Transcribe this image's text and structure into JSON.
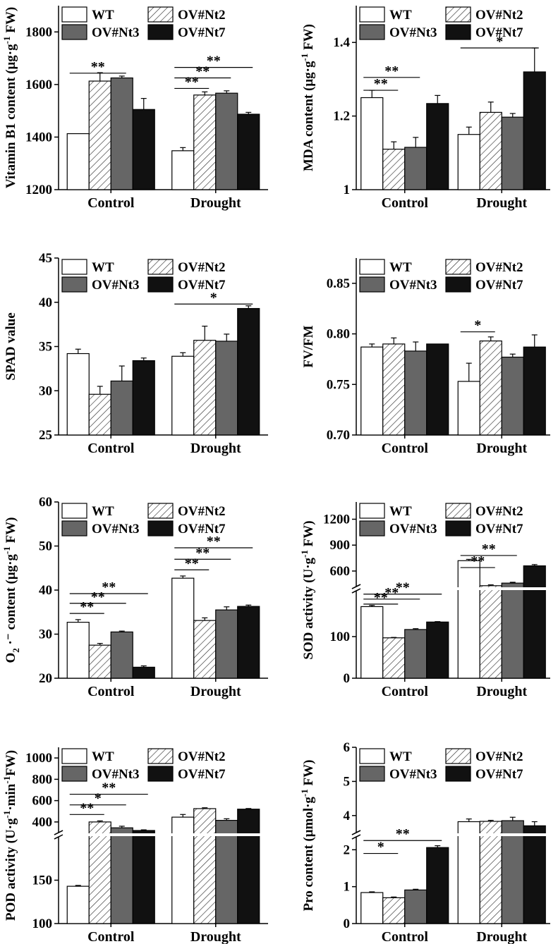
{
  "legend": {
    "wt": "WT",
    "ov2": "OV#Nt2",
    "ov3": "OV#Nt3",
    "ov7": "OV#Nt7"
  },
  "chart_data": [
    {
      "id": "vb1",
      "type": "bar",
      "ylabel": "Vitamin B1 content (μg·g−1 FW)",
      "ylabel_parts": [
        "Vitamin B1 content (μg·g",
        "-1",
        " FW)"
      ],
      "categories": [
        "Control",
        "Drought"
      ],
      "ylim": [
        1200,
        1900
      ],
      "yticks": [
        1200,
        1400,
        1600,
        1800
      ],
      "series": [
        {
          "name": "WT",
          "values": [
            1413,
            1348
          ],
          "errors": [
            0,
            12
          ]
        },
        {
          "name": "OV#Nt2",
          "values": [
            1613,
            1560
          ],
          "errors": [
            32,
            12
          ]
        },
        {
          "name": "OV#Nt3",
          "values": [
            1625,
            1567
          ],
          "errors": [
            7,
            9
          ]
        },
        {
          "name": "OV#Nt7",
          "values": [
            1505,
            1487
          ],
          "errors": [
            42,
            7
          ]
        }
      ],
      "significance": [
        {
          "category": 0,
          "from": 0,
          "to": 2,
          "label": "**",
          "level": 1643
        },
        {
          "category": 1,
          "from": 0,
          "to": 1,
          "label": "**",
          "level": 1585
        },
        {
          "category": 1,
          "from": 0,
          "to": 2,
          "label": "**",
          "level": 1625
        },
        {
          "category": 1,
          "from": 0,
          "to": 3,
          "label": "**",
          "level": 1665
        }
      ]
    },
    {
      "id": "mda",
      "type": "bar",
      "ylabel": "MDA content (μg·g−1 FW)",
      "ylabel_parts": [
        "MDA content (μg·g",
        "-1",
        " FW)"
      ],
      "categories": [
        "Control",
        "Drought"
      ],
      "ylim": [
        1.0,
        1.5
      ],
      "yticks": [
        1.0,
        1.2,
        1.4
      ],
      "series": [
        {
          "name": "WT",
          "values": [
            1.25,
            1.15
          ],
          "errors": [
            0.02,
            0.02
          ]
        },
        {
          "name": "OV#Nt2",
          "values": [
            1.11,
            1.21
          ],
          "errors": [
            0.02,
            0.028
          ]
        },
        {
          "name": "OV#Nt3",
          "values": [
            1.115,
            1.197
          ],
          "errors": [
            0.027,
            0.01
          ]
        },
        {
          "name": "OV#Nt7",
          "values": [
            1.234,
            1.32
          ],
          "errors": [
            0.022,
            0.065
          ]
        }
      ],
      "significance": [
        {
          "category": 0,
          "from": 0,
          "to": 1,
          "label": "**",
          "level": 1.27
        },
        {
          "category": 0,
          "from": 0,
          "to": 2,
          "label": "**",
          "level": 1.305
        },
        {
          "category": 1,
          "from": 0,
          "to": 3,
          "label": "*",
          "level": 1.385
        }
      ]
    },
    {
      "id": "spad",
      "type": "bar",
      "ylabel": "SPAD value",
      "ylabel_parts": [
        "SPAD value",
        "",
        ""
      ],
      "categories": [
        "Control",
        "Drought"
      ],
      "ylim": [
        25,
        45
      ],
      "yticks": [
        25,
        30,
        35,
        40,
        45
      ],
      "series": [
        {
          "name": "WT",
          "values": [
            34.2,
            33.9
          ],
          "errors": [
            0.5,
            0.4
          ]
        },
        {
          "name": "OV#Nt2",
          "values": [
            29.6,
            35.7
          ],
          "errors": [
            0.9,
            1.6
          ]
        },
        {
          "name": "OV#Nt3",
          "values": [
            31.1,
            35.6
          ],
          "errors": [
            1.7,
            0.8
          ]
        },
        {
          "name": "OV#Nt7",
          "values": [
            33.4,
            39.3
          ],
          "errors": [
            0.3,
            0.3
          ]
        }
      ],
      "significance": [
        {
          "category": 1,
          "from": 0,
          "to": 3,
          "label": "*",
          "level": 39.8
        }
      ]
    },
    {
      "id": "fvfm",
      "type": "bar",
      "ylabel": "FV/FM",
      "ylabel_parts": [
        "FV/FM",
        "",
        ""
      ],
      "categories": [
        "Control",
        "Drought"
      ],
      "ylim": [
        0.7,
        0.875
      ],
      "yticks": [
        0.7,
        0.75,
        0.8,
        0.85
      ],
      "tick_decimals": 2,
      "series": [
        {
          "name": "WT",
          "values": [
            0.787,
            0.753
          ],
          "errors": [
            0.003,
            0.018
          ]
        },
        {
          "name": "OV#Nt2",
          "values": [
            0.79,
            0.793
          ],
          "errors": [
            0.006,
            0.004
          ]
        },
        {
          "name": "OV#Nt3",
          "values": [
            0.783,
            0.777
          ],
          "errors": [
            0.009,
            0.003
          ]
        },
        {
          "name": "OV#Nt7",
          "values": [
            0.79,
            0.787
          ],
          "errors": [
            0.0,
            0.012
          ]
        }
      ],
      "significance": [
        {
          "category": 1,
          "from": 0,
          "to": 1,
          "label": "*",
          "level": 0.802
        }
      ]
    },
    {
      "id": "o2",
      "type": "bar",
      "ylabel": "O2·− content (μg·g−1 FW)",
      "ylabel_parts": [
        "O",
        "2",
        " ·⁻ content (μg·g",
        "-1",
        " FW)"
      ],
      "categories": [
        "Control",
        "Drought"
      ],
      "ylim": [
        20,
        60
      ],
      "yticks": [
        20,
        30,
        40,
        50,
        60
      ],
      "series": [
        {
          "name": "WT",
          "values": [
            32.7,
            42.7
          ],
          "errors": [
            0.6,
            0.5
          ]
        },
        {
          "name": "OV#Nt2",
          "values": [
            27.5,
            33.1
          ],
          "errors": [
            0.4,
            0.6
          ]
        },
        {
          "name": "OV#Nt3",
          "values": [
            30.5,
            35.5
          ],
          "errors": [
            0.2,
            0.7
          ]
        },
        {
          "name": "OV#Nt7",
          "values": [
            22.5,
            36.3
          ],
          "errors": [
            0.3,
            0.3
          ]
        }
      ],
      "significance": [
        {
          "category": 0,
          "from": 0,
          "to": 1,
          "label": "**",
          "level": 34.7
        },
        {
          "category": 0,
          "from": 0,
          "to": 2,
          "label": "**",
          "level": 37.0
        },
        {
          "category": 0,
          "from": 0,
          "to": 3,
          "label": "**",
          "level": 39.2
        },
        {
          "category": 1,
          "from": 0,
          "to": 1,
          "label": "**",
          "level": 44.6
        },
        {
          "category": 1,
          "from": 0,
          "to": 2,
          "label": "**",
          "level": 47.0
        },
        {
          "category": 1,
          "from": 0,
          "to": 3,
          "label": "**",
          "level": 49.6
        }
      ]
    },
    {
      "id": "sod",
      "type": "bar",
      "broken": true,
      "ylabel": "SOD activity (U·g−1 FW)",
      "ylabel_parts": [
        "SOD activity (U·g",
        "-1",
        " FW)"
      ],
      "categories": [
        "Control",
        "Drought"
      ],
      "lower_range": [
        0,
        210
      ],
      "lower_ticks": [
        0,
        100
      ],
      "upper_range": [
        420,
        1400
      ],
      "upper_ticks": [
        600,
        900,
        1200
      ],
      "series": [
        {
          "name": "WT",
          "values": [
            172,
            720
          ],
          "errors": [
            3,
            15
          ]
        },
        {
          "name": "OV#Nt2",
          "values": [
            97,
            430
          ],
          "errors": [
            1,
            10
          ]
        },
        {
          "name": "OV#Nt3",
          "values": [
            117,
            460
          ],
          "errors": [
            2,
            10
          ]
        },
        {
          "name": "OV#Nt7",
          "values": [
            135,
            660
          ],
          "errors": [
            1,
            15
          ]
        }
      ],
      "significance": [
        {
          "category": 0,
          "from": 0,
          "to": 1,
          "label": "**",
          "level": 178
        },
        {
          "category": 0,
          "from": 0,
          "to": 2,
          "label": "**",
          "level": 190
        },
        {
          "category": 0,
          "from": 0,
          "to": 3,
          "label": "**",
          "level": 202
        },
        {
          "category": 1,
          "from": 0,
          "to": 1,
          "label": "**",
          "level": 640
        },
        {
          "category": 1,
          "from": 0,
          "to": 2,
          "label": "**",
          "level": 780
        }
      ]
    },
    {
      "id": "pod",
      "type": "bar",
      "broken": true,
      "ylabel": "POD activity (U·g−1·min−1FW)",
      "ylabel_parts": [
        "POD activity (U·g",
        "-1",
        "·min",
        "-1",
        "FW)"
      ],
      "categories": [
        "Control",
        "Drought"
      ],
      "lower_range": [
        100,
        200
      ],
      "lower_ticks": [
        100,
        150
      ],
      "upper_range": [
        300,
        1100
      ],
      "upper_ticks": [
        400,
        600,
        800,
        1000
      ],
      "series": [
        {
          "name": "WT",
          "values": [
            143,
            445
          ],
          "errors": [
            1,
            25
          ]
        },
        {
          "name": "OV#Nt2",
          "values": [
            400,
            525
          ],
          "errors": [
            10,
            8
          ]
        },
        {
          "name": "OV#Nt3",
          "values": [
            345,
            415
          ],
          "errors": [
            15,
            15
          ]
        },
        {
          "name": "OV#Nt7",
          "values": [
            320,
            520
          ],
          "errors": [
            6,
            6
          ]
        }
      ],
      "significance": [
        {
          "category": 0,
          "from": 0,
          "to": 1,
          "label": "**",
          "level": 470
        },
        {
          "category": 0,
          "from": 0,
          "to": 2,
          "label": "*",
          "level": 560
        },
        {
          "category": 0,
          "from": 0,
          "to": 3,
          "label": "**",
          "level": 660
        }
      ]
    },
    {
      "id": "pro",
      "type": "bar",
      "broken": true,
      "ylabel": "Pro content (μmol·g−1 FW)",
      "ylabel_parts": [
        "Pro content (μmol·g",
        "-1",
        " FW)"
      ],
      "categories": [
        "Control",
        "Drought"
      ],
      "lower_range": [
        0,
        2.35
      ],
      "lower_ticks": [
        0,
        1,
        2
      ],
      "upper_range": [
        3.5,
        6
      ],
      "upper_ticks": [
        4,
        5,
        6
      ],
      "series": [
        {
          "name": "WT",
          "values": [
            0.84,
            3.82
          ],
          "errors": [
            0.02,
            0.08
          ]
        },
        {
          "name": "OV#Nt2",
          "values": [
            0.7,
            3.83
          ],
          "errors": [
            0.02,
            0.03
          ]
        },
        {
          "name": "OV#Nt3",
          "values": [
            0.91,
            3.85
          ],
          "errors": [
            0.02,
            0.1
          ]
        },
        {
          "name": "OV#Nt7",
          "values": [
            2.06,
            3.7
          ],
          "errors": [
            0.05,
            0.12
          ]
        }
      ],
      "significance": [
        {
          "category": 0,
          "from": 0,
          "to": 1,
          "label": "*",
          "level": 1.9
        },
        {
          "category": 0,
          "from": 0,
          "to": 3,
          "label": "**",
          "level": 2.25
        }
      ]
    }
  ]
}
